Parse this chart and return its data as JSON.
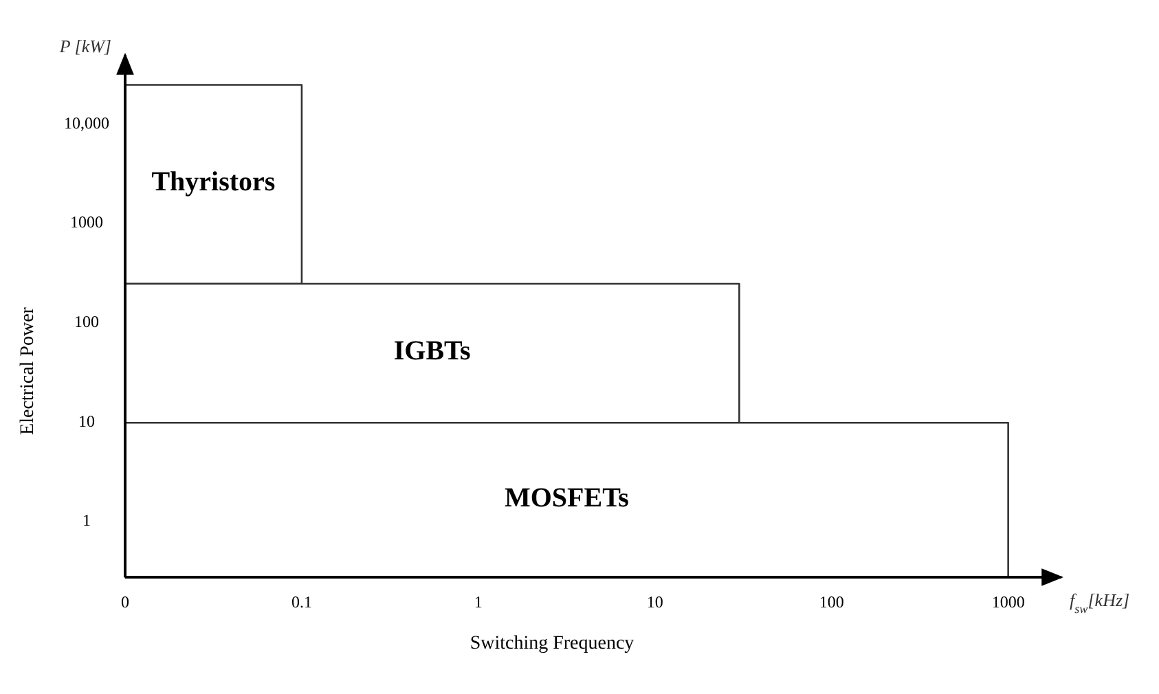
{
  "chart_data": {
    "type": "area",
    "xlabel": "Switching Frequency",
    "ylabel": "Electrical Power",
    "annotations": [
      "f$_{sw}$[kHz]",
      "P [kW]"
    ],
    "log": "xy",
    "xlim": [
      0.01,
      2000
    ],
    "xticks": [
      {
        "value": 0.01,
        "label": "0"
      },
      0.1,
      1,
      10,
      100,
      1000
    ],
    "ylim": [
      0.28,
      50000
    ],
    "yticks": [
      1,
      10,
      100,
      1000,
      {
        "value": 10000,
        "label": "10,000"
      }
    ],
    "series": [
      {
        "name": "Thyristors",
        "color": "#333333",
        "x": [
          0.01,
          0.1
        ],
        "values": [
          25000,
          25000
        ]
      },
      {
        "name": "IGBTs",
        "color": "#333333",
        "x": [
          0.01,
          30
        ],
        "values": [
          250,
          250
        ]
      },
      {
        "name": "MOSFETs",
        "color": "#333333",
        "x": [
          0.01,
          1000
        ],
        "values": [
          10,
          10
        ]
      }
    ]
  }
}
